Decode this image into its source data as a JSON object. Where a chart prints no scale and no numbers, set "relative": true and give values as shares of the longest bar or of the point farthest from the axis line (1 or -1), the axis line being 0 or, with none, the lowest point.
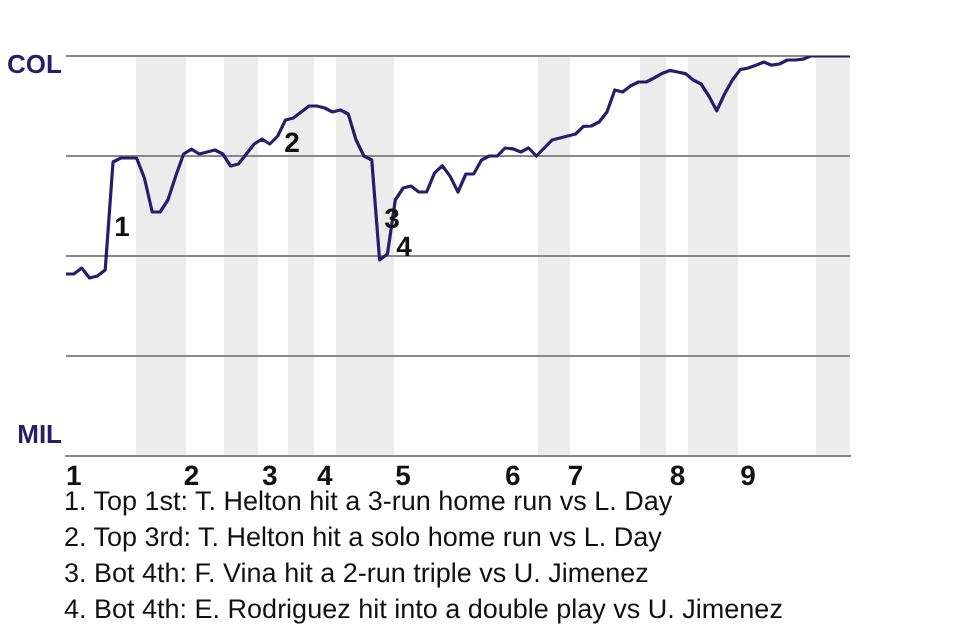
{
  "chart_data": {
    "type": "line",
    "color": "#2b1b6b",
    "relative": true,
    "categories": [
      null,
      "1",
      null,
      null,
      null,
      null,
      null,
      null,
      null,
      null,
      null,
      null,
      null,
      null,
      null,
      null,
      "2",
      null,
      null,
      null,
      null,
      null,
      null,
      null,
      null,
      null,
      "3",
      null,
      null,
      null,
      null,
      null,
      null,
      "4",
      null,
      null,
      null,
      null,
      null,
      null,
      null,
      null,
      null,
      "5",
      null,
      null,
      null,
      null,
      null,
      null,
      null,
      null,
      null,
      null,
      null,
      null,
      null,
      "6",
      null,
      null,
      null,
      null,
      null,
      null,
      null,
      "7",
      null,
      null,
      null,
      null,
      null,
      null,
      null,
      null,
      null,
      null,
      null,
      null,
      "8",
      null,
      null,
      null,
      null,
      null,
      null,
      null,
      null,
      "9",
      null,
      null,
      null,
      null,
      null,
      null,
      null,
      null,
      null,
      null,
      null,
      null,
      null
    ],
    "values": [
      0.455,
      0.455,
      0.47,
      0.445,
      0.45,
      0.465,
      0.735,
      0.745,
      0.745,
      0.745,
      0.695,
      0.61,
      0.61,
      0.64,
      0.7,
      0.755,
      0.767,
      0.755,
      0.76,
      0.765,
      0.755,
      0.725,
      0.73,
      0.755,
      0.78,
      0.792,
      0.78,
      0.8,
      0.84,
      0.845,
      0.86,
      0.875,
      0.875,
      0.87,
      0.86,
      0.865,
      0.855,
      0.79,
      0.75,
      0.74,
      0.49,
      0.505,
      0.64,
      0.67,
      0.675,
      0.66,
      0.66,
      0.707,
      0.726,
      0.699,
      0.66,
      0.705,
      0.705,
      0.74,
      0.75,
      0.75,
      0.77,
      0.768,
      0.76,
      0.77,
      0.75,
      0.77,
      0.79,
      0.795,
      0.8,
      0.805,
      0.824,
      0.825,
      0.835,
      0.86,
      0.915,
      0.91,
      0.925,
      0.935,
      0.935,
      0.945,
      0.956,
      0.964,
      0.96,
      0.956,
      0.94,
      0.93,
      0.9,
      0.863,
      0.905,
      0.94,
      0.966,
      0.97,
      0.977,
      0.985,
      0.977,
      0.98,
      0.99,
      0.99,
      0.992,
      1,
      1,
      1,
      1,
      1,
      1
    ],
    "grid": "y",
    "annotations": [
      "COL",
      "MIL",
      "1",
      "2",
      "3",
      "4",
      "1. Top 1st: T. Helton hit a 3-run home run vs L. Day",
      "2. Top 3rd: T. Helton hit a solo home run vs L. Day",
      "3. Bot 4th: F. Vina hit a 2-run triple vs U. Jimenez",
      "4. Bot 4th: E. Rodriguez hit into a double play vs U. Jimenez"
    ]
  }
}
